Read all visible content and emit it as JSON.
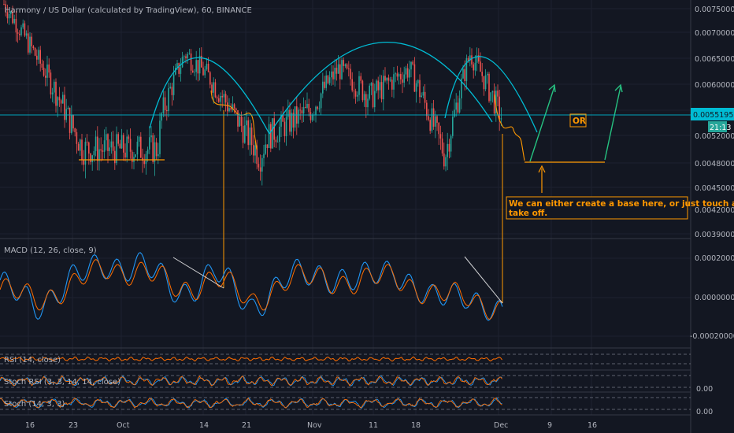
{
  "header": {
    "title": "Harmony / US Dollar (calculated by TradingView), 60, BINANCE"
  },
  "colors": {
    "background": "#131722",
    "grid": "#1e2230",
    "candle_up": "#26a69a",
    "candle_down": "#ef5350",
    "arc": "#00bcd4",
    "annotation": "#ff9800",
    "arrow": "#26c281",
    "macd_line": "#2196f3",
    "signal_line": "#ff6d00",
    "price_line": "#00bcd4",
    "rsi": "#ff6d00",
    "text": "#b2b5be"
  },
  "price_scale": {
    "ticks": [
      "0.00750000",
      "0.00700000",
      "0.00650000",
      "0.00600000",
      "0.00520000",
      "0.00480000",
      "0.00450000",
      "0.00420000",
      "0.00390000"
    ],
    "current_price": "0.00551957",
    "countdown": "21:13"
  },
  "macd": {
    "label": "MACD (12, 26, close, 9)",
    "ticks": [
      "0.00020000",
      "0.00000000",
      "-0.00020000"
    ]
  },
  "rsi": {
    "label": "RSI (14, close)"
  },
  "stoch_rsi": {
    "label": "Stoch RSI (3, 3, 14, 14, close)",
    "tick": "0.00"
  },
  "stoch": {
    "label": "Stoch (14, 3, 3)",
    "tick": "0.00"
  },
  "time_axis": [
    "16",
    "23",
    "Oct",
    "14",
    "21",
    "Nov",
    "11",
    "18",
    "Dec",
    "9",
    "16"
  ],
  "annotations": {
    "or_label": "OR",
    "note": "We can either create a base here, or just touch and take off."
  },
  "chart_data": [
    {
      "type": "candlestick",
      "title": "Harmony / US Dollar (calculated by TradingView), 60, BINANCE",
      "symbol": "Harmony / US Dollar",
      "interval": "60",
      "exchange": "BINANCE",
      "x": [
        "16",
        "23",
        "Oct",
        "14",
        "21",
        "Nov",
        "11",
        "18",
        "Dec",
        "9",
        "16"
      ],
      "approx_close_path": [
        [
          "16",
          0.0076
        ],
        [
          "23",
          0.005
        ],
        [
          "Oct",
          0.005
        ],
        [
          "Oct",
          0.0055
        ],
        [
          "14",
          0.0066
        ],
        [
          "14",
          0.0062
        ],
        [
          "21",
          0.0049
        ],
        [
          "21",
          0.0052
        ],
        [
          "Nov",
          0.0056
        ],
        [
          "Nov",
          0.0063
        ],
        [
          "11",
          0.0058
        ],
        [
          "18",
          0.0063
        ],
        [
          "18",
          0.0049
        ],
        [
          "Dec",
          0.0066
        ],
        [
          "Dec",
          0.0054
        ]
      ],
      "last_price": 0.00551957,
      "support_level": 0.0048,
      "ylim": [
        0.0038,
        0.0077
      ],
      "annotations": [
        "OR",
        "We can either create a base here, or just touch and take off."
      ]
    },
    {
      "type": "line",
      "title": "MACD (12, 26, close, 9)",
      "series": [
        {
          "name": "MACD",
          "values": [
            5e-05,
            -3e-05,
            8e-05,
            0.00018,
            0.00015,
            3e-05,
            0.00012,
            -4e-05,
            9e-05,
            0.00013,
            7e-05,
            0.00016,
            -3e-05,
            4e-05,
            -0.00012
          ]
        },
        {
          "name": "Signal",
          "values": [
            4e-05,
            -1e-05,
            6e-05,
            0.00015,
            0.00013,
            4e-05,
            0.0001,
            -2e-05,
            8e-05,
            0.00011,
            6e-05,
            0.00013,
            -1e-05,
            3e-05,
            -9e-05
          ]
        }
      ],
      "ylim": [
        -0.00022,
        0.00022
      ]
    },
    {
      "type": "line",
      "title": "RSI (14, close)"
    },
    {
      "type": "line",
      "title": "Stoch RSI (3, 3, 14, 14, close)"
    },
    {
      "type": "line",
      "title": "Stoch (14, 3, 3)"
    }
  ]
}
